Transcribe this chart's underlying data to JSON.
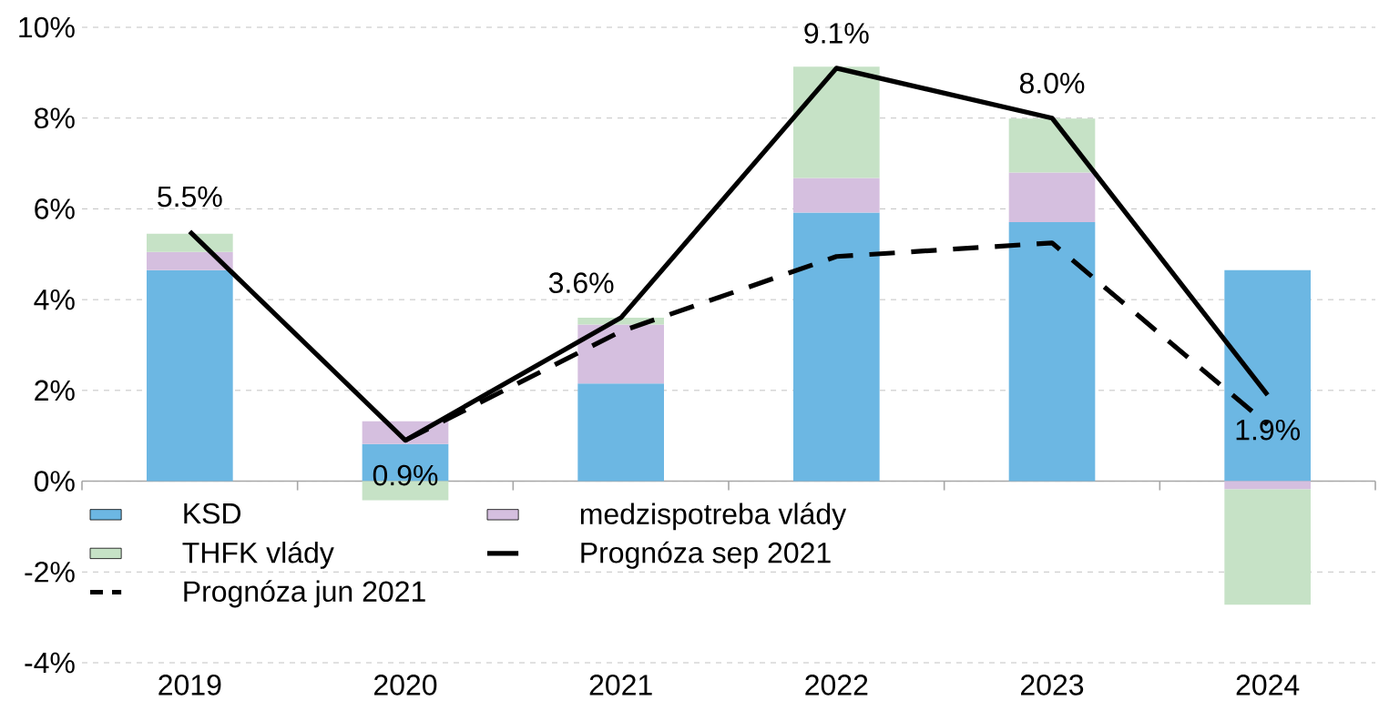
{
  "chart_data": {
    "type": "bar",
    "stacked": true,
    "categories": [
      "2019",
      "2020",
      "2021",
      "2022",
      "2023",
      "2024"
    ],
    "series": [
      {
        "name": "KSD",
        "color": "#6cb7e3",
        "values": [
          4.65,
          0.82,
          2.15,
          5.92,
          5.71,
          4.65
        ]
      },
      {
        "name": "medzispotreba vlády",
        "color": "#d5bfdf",
        "values": [
          0.4,
          0.5,
          1.3,
          0.76,
          1.09,
          -0.18
        ]
      },
      {
        "name": "THFK vlády",
        "color": "#c6e2c6",
        "values": [
          0.4,
          -0.42,
          0.15,
          2.45,
          1.19,
          -2.54
        ]
      },
      {
        "name": "Prognóza sep 2021",
        "type": "line",
        "color": "#000000",
        "line_style": "solid",
        "values": [
          5.5,
          0.9,
          3.6,
          9.1,
          8.0,
          1.9
        ],
        "value_labels": [
          "5.5%",
          "0.9%",
          "3.6%",
          "9.1%",
          "8.0%",
          "1.9%"
        ]
      },
      {
        "name": "Prognóza jun 2021",
        "type": "line",
        "color": "#000000",
        "line_style": "dashed",
        "values": [
          null,
          0.9,
          3.3,
          4.95,
          5.25,
          1.25
        ]
      }
    ],
    "ylim": [
      -4,
      10
    ],
    "yticks": [
      {
        "value": -4,
        "label": "-4%"
      },
      {
        "value": -2,
        "label": "-2%"
      },
      {
        "value": 0,
        "label": "0%"
      },
      {
        "value": 2,
        "label": "2%"
      },
      {
        "value": 4,
        "label": "4%"
      },
      {
        "value": 6,
        "label": "6%"
      },
      {
        "value": 8,
        "label": "8%"
      },
      {
        "value": 10,
        "label": "10%"
      }
    ],
    "grid": "y",
    "legend": "bottom left",
    "marker": "none"
  }
}
